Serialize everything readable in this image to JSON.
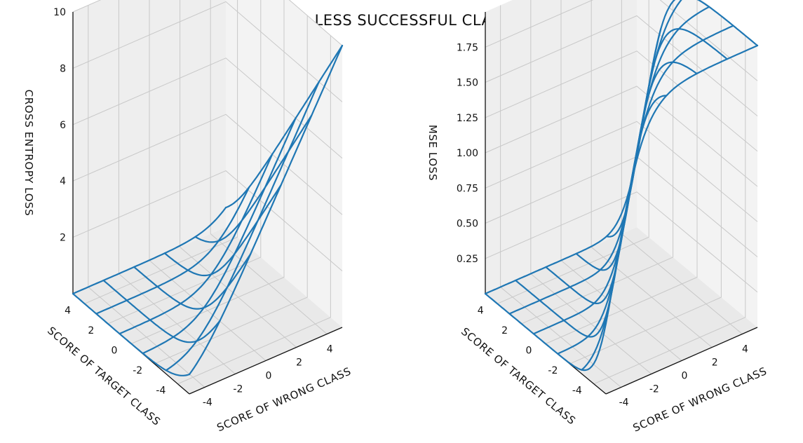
{
  "figure": {
    "title": "SUCCESSFUL AND LESS SUCCESSFUL CLASSIFICATION LOSSES"
  },
  "colors": {
    "wireframe": "#1f77b4",
    "pane_left": "#eeeeee",
    "pane_right": "#f3f3f3",
    "pane_floor": "#e9e9e9",
    "grid": "#c8c8c8",
    "axis_line": "#111111"
  },
  "chart_data": [
    {
      "type": "surface",
      "subtype": "3d-wireframe",
      "zlabel": "CROSS ENTROPY LOSS",
      "xlabel": "SCORE OF WRONG CLASS",
      "ylabel": "SCORE OF TARGET CLASS",
      "function": "cross-entropy: log(1 + exp(wrong - target))",
      "grid": true,
      "x_range": [
        -5,
        5
      ],
      "y_range": [
        -5,
        5
      ],
      "zlim": [
        0,
        10
      ],
      "x_ticks": [
        "-4",
        "-2",
        "0",
        "2",
        "4"
      ],
      "y_ticks": [
        "-4",
        "-2",
        "0",
        "2",
        "4"
      ],
      "z_ticks": [
        "2",
        "4",
        "6",
        "8",
        "10"
      ],
      "wire_lines": [
        -5,
        -3,
        -1,
        1,
        3,
        5
      ],
      "z_min_approx": 0,
      "z_max_approx": 10
    },
    {
      "type": "surface",
      "subtype": "3d-wireframe",
      "zlabel": "MSE LOSS",
      "xlabel": "SCORE OF WRONG CLASS",
      "ylabel": "SCORE OF TARGET CLASS",
      "function": "MSE on softmax probabilities: 2*(1 - sigmoid(target - wrong))^2",
      "grid": true,
      "x_range": [
        -5,
        5
      ],
      "y_range": [
        -5,
        5
      ],
      "zlim": [
        0,
        2
      ],
      "x_ticks": [
        "-4",
        "-2",
        "0",
        "2",
        "4"
      ],
      "y_ticks": [
        "-4",
        "-2",
        "0",
        "2",
        "4"
      ],
      "z_ticks": [
        "0.25",
        "0.50",
        "0.75",
        "1.00",
        "1.25",
        "1.50",
        "1.75"
      ],
      "wire_lines": [
        -5,
        -3,
        -1,
        1,
        3,
        5
      ],
      "z_min_approx": 0,
      "z_max_approx": 2
    }
  ]
}
